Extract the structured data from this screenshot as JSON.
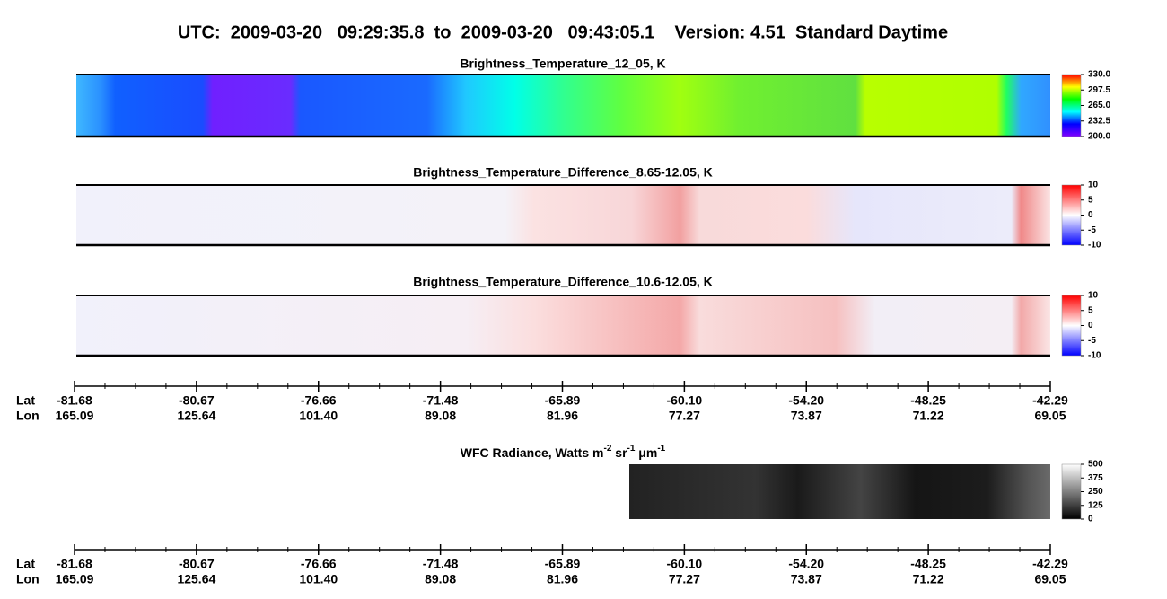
{
  "title": "UTC:  2009-03-20   09:29:35.8  to  2009-03-20   09:43:05.1    Version: 4.51  Standard Daytime",
  "panels": [
    {
      "title": "Brightness_Temperature_12_05, K",
      "colorbar": {
        "range": [
          200,
          330
        ],
        "ticks": [
          {
            "value": 330,
            "label": "330.0"
          },
          297.5,
          {
            "value": 265,
            "label": "265.0"
          },
          232.5,
          {
            "value": 200,
            "label": "200.0"
          }
        ],
        "colors": [
          "#8000ff",
          "#0000ff",
          "#00ffff",
          "#00ff00",
          "#ffff00",
          "#ff0000"
        ]
      }
    },
    {
      "title": "Brightness_Temperature_Difference_8.65-12.05, K",
      "colorbar": {
        "range": [
          -10,
          10
        ],
        "ticks": [
          10,
          5,
          0,
          -5,
          -10
        ],
        "colors": [
          "#0000ff",
          "#ffffff",
          "#ff0000"
        ]
      }
    },
    {
      "title": "Brightness_Temperature_Difference_10.6-12.05, K",
      "colorbar": {
        "range": [
          -10,
          10
        ],
        "ticks": [
          10,
          5,
          0,
          -5,
          -10
        ],
        "colors": [
          "#0000ff",
          "#ffffff",
          "#ff0000"
        ]
      }
    },
    {
      "title": [
        "WFC Radiance, Watts m",
        "-2",
        " sr",
        "-1",
        " μm",
        "-1"
      ],
      "colorbar": {
        "range": [
          0,
          500
        ],
        "ticks": [
          500,
          375,
          250,
          125,
          0
        ],
        "colors": [
          "#000000",
          "#ffffff"
        ]
      }
    }
  ],
  "axes": [
    {
      "rows": [
        {
          "label": "Lat",
          "values": [
            "-81.68",
            "-80.67",
            "-76.66",
            "-71.48",
            "-65.89",
            "-60.10",
            "-54.20",
            "-48.25",
            "-42.29"
          ]
        },
        {
          "label": "Lon",
          "values": [
            "165.09",
            "125.64",
            "101.40",
            "89.08",
            "81.96",
            "77.27",
            "73.87",
            "71.22",
            "69.05"
          ]
        }
      ]
    },
    {
      "rows": [
        {
          "label": "Lat",
          "values": [
            "-81.68",
            "-80.67",
            "-76.66",
            "-71.48",
            "-65.89",
            "-60.10",
            "-54.20",
            "-48.25",
            "-42.29"
          ]
        },
        {
          "label": "Lon",
          "values": [
            "165.09",
            "125.64",
            "101.40",
            "89.08",
            "81.96",
            "77.27",
            "73.87",
            "71.22",
            "69.05"
          ]
        }
      ]
    }
  ]
}
